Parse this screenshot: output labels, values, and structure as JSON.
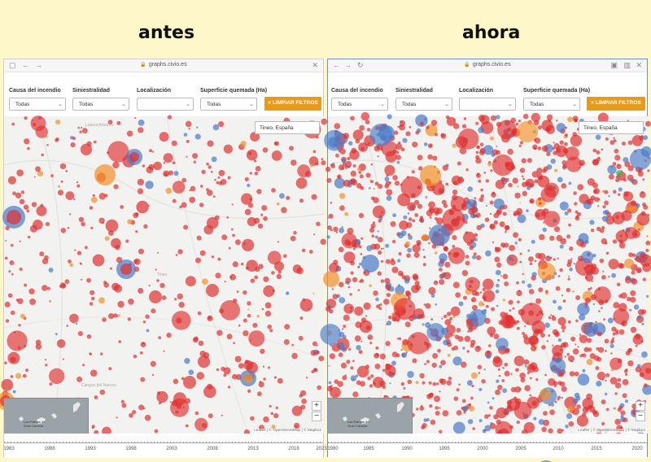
{
  "headings": {
    "left": "antes",
    "right": "ahora"
  },
  "browser": {
    "url": "graphs.civio.es"
  },
  "filters": {
    "cause_label": "Causa del incendio",
    "cause_value": "Todas",
    "damage_label": "Siniestralidad",
    "damage_value": "Todas",
    "location_label": "Localización",
    "location_value": "",
    "area_label": "Superficie quemada (Ha)",
    "area_value": "Todas",
    "clear_label": "× LIMPIAR FILTROS"
  },
  "map": {
    "location_tooltip": "Tineo, España",
    "inset_label": "Las Palmas de Gran Canaria",
    "zoom_in": "+",
    "zoom_out": "−",
    "attribution": "Leaflet | © OpenStreetMap | © Mapbox",
    "place_labels_left": [
      "Luarca Arbarca",
      "Tineo",
      "Cangas del Narcea"
    ]
  },
  "timeline_left": {
    "ticks": [
      "1983",
      "1988",
      "1993",
      "1998",
      "2003",
      "2008",
      "2013",
      "2018",
      "2023"
    ]
  },
  "timeline_right": {
    "ticks": [
      "1980",
      "1985",
      "1990",
      "1995",
      "2000",
      "2005",
      "2010",
      "2015",
      "2020"
    ]
  },
  "colors": {
    "red": "#e03030",
    "blue": "#4a7bc8",
    "orange": "#f5902a",
    "green": "#50b050",
    "button": "#e89a1a"
  }
}
